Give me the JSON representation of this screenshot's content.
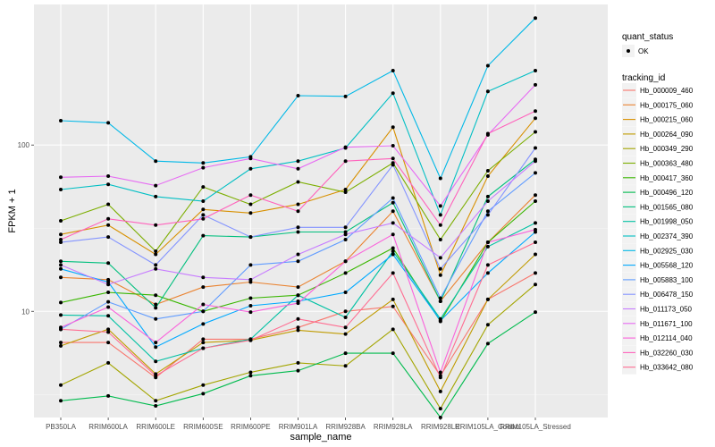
{
  "chart_data": {
    "type": "line",
    "xlabel": "sample_name",
    "ylabel": "FPKM + 1",
    "y_scale": "log10",
    "ylim": [
      2.3,
      700
    ],
    "y_ticks": [
      10,
      100
    ],
    "y_tick_labels": [
      "10",
      "100"
    ],
    "grid": true,
    "legend_position": "right",
    "categories": [
      "PB350LA",
      "RRIM600LA",
      "RRIM600LE",
      "RRIM600SE",
      "RRIM600PE",
      "RRIM901LA",
      "RRIM928BA",
      "RRIM928LA",
      "RRIM928LE",
      "RRIM105LA_Control",
      "RRIM105LA_Stressed"
    ],
    "shape_legend": {
      "title": "quant_status",
      "entries": [
        "OK"
      ]
    },
    "color_legend_title": "tracking_id",
    "series": [
      {
        "name": "Hb_000009_460",
        "color": "#F8766D",
        "values": [
          6.5,
          6.5,
          4.0,
          6.8,
          6.8,
          8.0,
          10.0,
          10.7,
          4.1,
          11.8,
          17.0
        ]
      },
      {
        "name": "Hb_000175_060",
        "color": "#EA8331",
        "values": [
          16.0,
          15.5,
          11.0,
          14.0,
          15.0,
          14.0,
          20.0,
          40.0,
          11.5,
          26.0,
          50.0
        ]
      },
      {
        "name": "Hb_000215_060",
        "color": "#D89000",
        "values": [
          29.0,
          33.0,
          22.0,
          41.0,
          39.0,
          44.0,
          54.0,
          128.0,
          16.5,
          65.0,
          145.0
        ]
      },
      {
        "name": "Hb_000264_090",
        "color": "#C09B00",
        "values": [
          6.2,
          7.8,
          4.2,
          6.5,
          6.7,
          7.7,
          7.3,
          11.8,
          3.3,
          11.8,
          22.0
        ]
      },
      {
        "name": "Hb_000349_290",
        "color": "#A3A500",
        "values": [
          3.6,
          4.9,
          2.9,
          3.6,
          4.3,
          4.9,
          4.7,
          7.8,
          2.6,
          8.3,
          14.5
        ]
      },
      {
        "name": "Hb_000363_480",
        "color": "#7CAE00",
        "values": [
          35.0,
          44.0,
          23.0,
          56.0,
          44.0,
          60.0,
          52.0,
          78.0,
          27.0,
          70.0,
          120.0
        ]
      },
      {
        "name": "Hb_000417_360",
        "color": "#39B600",
        "values": [
          11.3,
          13.0,
          12.5,
          10.0,
          12.0,
          12.5,
          17.0,
          24.0,
          8.7,
          26.0,
          46.0
        ]
      },
      {
        "name": "Hb_000496_120",
        "color": "#00BB4E",
        "values": [
          2.9,
          3.1,
          2.7,
          3.2,
          4.1,
          4.4,
          5.6,
          5.6,
          2.3,
          6.4,
          9.9
        ]
      },
      {
        "name": "Hb_001565_080",
        "color": "#00BF7D",
        "values": [
          20.0,
          19.5,
          10.5,
          28.5,
          28.0,
          30.0,
          30.0,
          45.0,
          11.5,
          49.0,
          82.0
        ]
      },
      {
        "name": "Hb_001998_050",
        "color": "#00C1A3",
        "values": [
          9.5,
          9.4,
          5.0,
          6.0,
          6.8,
          12.5,
          9.2,
          23.0,
          9.0,
          24.5,
          34.0
        ]
      },
      {
        "name": "Hb_002374_390",
        "color": "#00BFC4",
        "values": [
          54.0,
          58.0,
          49.0,
          46.0,
          72.0,
          80.0,
          96.0,
          205.0,
          38.0,
          210.0,
          280.0
        ]
      },
      {
        "name": "Hb_002925_030",
        "color": "#00B8E7",
        "values": [
          140.0,
          136.0,
          80.0,
          78.0,
          85.0,
          198.0,
          196.0,
          280.0,
          63.0,
          300.0,
          580.0
        ]
      },
      {
        "name": "Hb_005568_120",
        "color": "#00A9FF",
        "values": [
          18.0,
          15.0,
          6.1,
          8.4,
          10.8,
          11.5,
          13.0,
          22.0,
          8.8,
          17.0,
          30.0
        ]
      },
      {
        "name": "Hb_005883_100",
        "color": "#619CFF",
        "values": [
          7.8,
          11.4,
          9.0,
          10.0,
          19.0,
          20.0,
          27.0,
          48.0,
          12.0,
          40.0,
          68.0
        ]
      },
      {
        "name": "Hb_006478_150",
        "color": "#8494FF",
        "values": [
          26.0,
          28.0,
          19.0,
          38.0,
          28.0,
          32.0,
          32.0,
          76.0,
          18.0,
          38.0,
          96.0
        ]
      },
      {
        "name": "Hb_011173_050",
        "color": "#C77CFF",
        "values": [
          19.0,
          14.5,
          18.0,
          16.0,
          15.5,
          22.0,
          29.0,
          34.0,
          21.0,
          46.0,
          80.0
        ]
      },
      {
        "name": "Hb_011671_100",
        "color": "#E76BF3",
        "values": [
          64.0,
          65.0,
          57.0,
          73.0,
          83.0,
          72.0,
          97.0,
          99.0,
          43.0,
          115.0,
          230.0
        ]
      },
      {
        "name": "Hb_012114_040",
        "color": "#FA62DB",
        "values": [
          8.0,
          10.6,
          6.5,
          11.0,
          9.9,
          11.2,
          20.0,
          29.0,
          4.3,
          26.0,
          31.0
        ]
      },
      {
        "name": "Hb_032260_030",
        "color": "#FF62BC",
        "values": [
          27.0,
          36.0,
          33.0,
          36.0,
          50.0,
          40.0,
          80.0,
          83.0,
          33.0,
          117.0,
          160.0
        ]
      },
      {
        "name": "Hb_033642_080",
        "color": "#FF6C91",
        "values": [
          7.8,
          7.5,
          4.1,
          6.0,
          6.7,
          9.0,
          8.0,
          17.0,
          4.0,
          19.0,
          26.0
        ]
      }
    ]
  }
}
